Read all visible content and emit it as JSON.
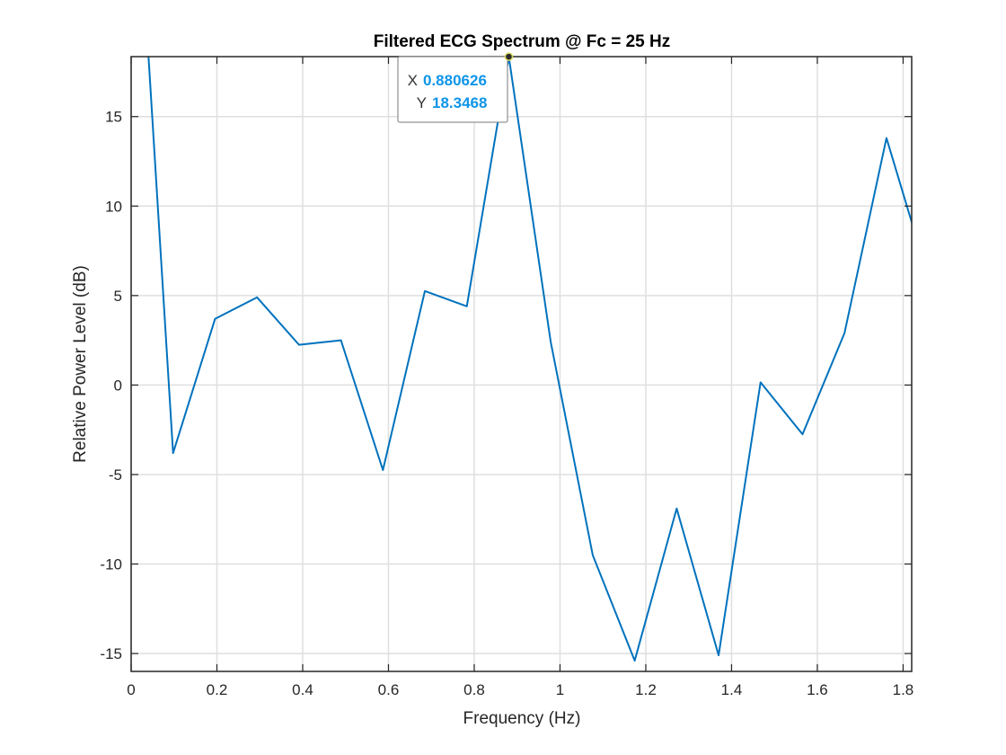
{
  "chart_data": {
    "type": "line",
    "title": "Filtered ECG Spectrum @ Fc = 25 Hz",
    "xlabel": "Frequency (Hz)",
    "ylabel": "Relative Power Level (dB)",
    "xlim": [
      0,
      1.82
    ],
    "ylim": [
      -16,
      18.35
    ],
    "xticks": [
      0,
      0.2,
      0.4,
      0.6,
      0.8,
      1,
      1.2,
      1.4,
      1.6,
      1.8
    ],
    "xtick_labels": [
      "0",
      "0.2",
      "0.4",
      "0.6",
      "0.8",
      "1",
      "1.2",
      "1.4",
      "1.6",
      "1.8"
    ],
    "yticks": [
      -15,
      -10,
      -5,
      0,
      5,
      10,
      15
    ],
    "ytick_labels": [
      "-15",
      "-10",
      "-5",
      "0",
      "5",
      "10",
      "15"
    ],
    "grid": true,
    "line_color": "#0072bd",
    "series": [
      {
        "x": [
          0.0,
          0.0978,
          0.1957,
          0.2935,
          0.3914,
          0.4892,
          0.5871,
          0.6849,
          0.7827,
          0.8806,
          0.9784,
          1.0763,
          1.1741,
          1.272,
          1.3698,
          1.4676,
          1.5655,
          1.6633,
          1.7612,
          1.859
        ],
        "y": [
          34.0,
          -3.8,
          3.7,
          4.9,
          2.25,
          2.5,
          -4.75,
          5.25,
          4.4,
          18.3468,
          2.4,
          -9.5,
          -15.4,
          -6.9,
          -15.1,
          0.15,
          -2.75,
          2.9,
          13.8,
          6.0
        ]
      }
    ],
    "datatip": {
      "x_key": "X",
      "y_key": "Y",
      "x_value": "0.880626",
      "y_value": "18.3468",
      "x": 0.880626,
      "y": 18.3468
    }
  }
}
